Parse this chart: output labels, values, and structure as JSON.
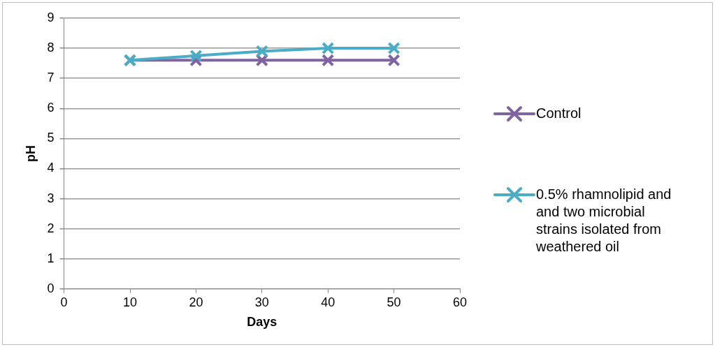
{
  "chart_data": {
    "type": "line",
    "xlabel": "Days",
    "ylabel": "pH",
    "x": [
      10,
      20,
      30,
      40,
      50
    ],
    "xlim": [
      0,
      60
    ],
    "xticks": [
      0,
      10,
      20,
      30,
      40,
      50,
      60
    ],
    "ylim": [
      0,
      9
    ],
    "yticks": [
      0,
      1,
      2,
      3,
      4,
      5,
      6,
      7,
      8,
      9
    ],
    "grid": "y",
    "legend": "right",
    "series": [
      {
        "name": "Control",
        "color": "#8064a2",
        "marker": "cross",
        "values": [
          7.6,
          7.6,
          7.6,
          7.6,
          7.6
        ]
      },
      {
        "name": "0.5% rhamnolipid and and two microbial strains isolated from weathered oil",
        "color": "#4bacc6",
        "marker": "cross",
        "values": [
          7.6,
          7.75,
          7.9,
          8.0,
          8.0
        ]
      }
    ]
  }
}
